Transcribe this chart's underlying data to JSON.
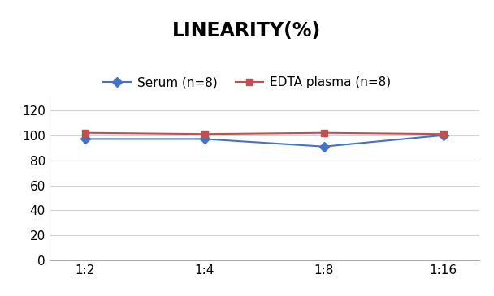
{
  "title": "LINEARITY(%)",
  "x_labels": [
    "1:2",
    "1:4",
    "1:8",
    "1:16"
  ],
  "serum_values": [
    97,
    97,
    91,
    100
  ],
  "edta_values": [
    102,
    101,
    102,
    101
  ],
  "serum_label": "Serum (n=8)",
  "edta_label": "EDTA plasma (n=8)",
  "serum_color": "#4472C4",
  "edta_color": "#C0504D",
  "ylim": [
    0,
    130
  ],
  "yticks": [
    0,
    20,
    40,
    60,
    80,
    100,
    120
  ],
  "title_fontsize": 17,
  "legend_fontsize": 11,
  "tick_fontsize": 11,
  "background_color": "#FFFFFF",
  "grid_color": "#D3D3D3"
}
